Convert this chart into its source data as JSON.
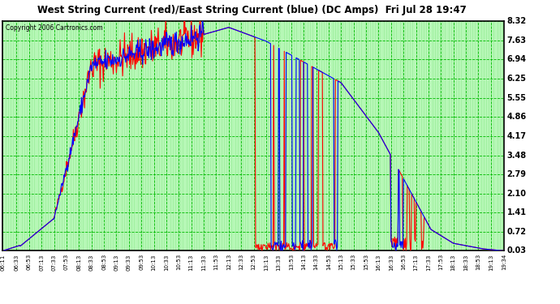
{
  "title": "West String Current (red)/East String Current (blue) (DC Amps)  Fri Jul 28 19:47",
  "copyright": "Copyright 2006 Cartronics.com",
  "bg_color": "#ffffff",
  "plot_bg_color": "#ccffcc",
  "grid_color": "#00bb00",
  "title_color": "#000000",
  "copyright_color": "#000000",
  "ytick_color": "#000000",
  "xtick_color": "#000000",
  "border_color": "#000000",
  "yticks": [
    0.03,
    0.72,
    1.41,
    2.1,
    2.79,
    3.48,
    4.17,
    4.86,
    5.55,
    6.25,
    6.94,
    7.63,
    8.32
  ],
  "ymin": 0.03,
  "ymax": 8.32,
  "xtick_labels": [
    "06:11",
    "06:33",
    "06:53",
    "07:13",
    "07:33",
    "07:53",
    "08:13",
    "08:33",
    "08:53",
    "09:13",
    "09:33",
    "09:53",
    "10:13",
    "10:33",
    "10:53",
    "11:13",
    "11:33",
    "11:53",
    "12:13",
    "12:33",
    "12:53",
    "13:13",
    "13:33",
    "13:53",
    "14:13",
    "14:33",
    "14:53",
    "15:13",
    "15:33",
    "15:53",
    "16:13",
    "16:33",
    "16:53",
    "17:13",
    "17:33",
    "17:53",
    "18:13",
    "18:33",
    "18:53",
    "19:13",
    "19:34"
  ],
  "west_color": "#ff0000",
  "east_color": "#0000ff",
  "line_width": 0.8
}
